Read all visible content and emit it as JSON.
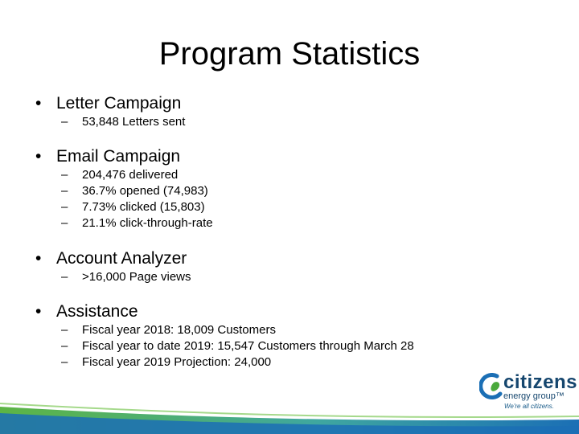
{
  "title": "Program Statistics",
  "bullet_glyph": "•",
  "dash_glyph": "–",
  "sections": [
    {
      "heading": "Letter Campaign",
      "items": [
        "53,848 Letters sent"
      ]
    },
    {
      "heading": "Email Campaign",
      "items": [
        "204,476 delivered",
        "36.7% opened (74,983)",
        "7.73% clicked (15,803)",
        "21.1% click-through-rate"
      ]
    },
    {
      "heading": "Account Analyzer",
      "items": [
        ">16,000 Page views"
      ]
    },
    {
      "heading": "Assistance",
      "items": [
        "Fiscal year 2018: 18,009 Customers",
        "Fiscal year to date 2019: 15,547 Customers through March 28",
        "Fiscal year 2019 Projection: 24,000"
      ]
    }
  ],
  "logo": {
    "name": "citizens",
    "subtitle": "energy group™",
    "tagline": "We're all citizens."
  },
  "colors": {
    "logo_blue": "#15466e",
    "logo_green": "#4aa93c",
    "swoosh_green": "#5db544",
    "swoosh_blue": "#1b6fb5"
  }
}
